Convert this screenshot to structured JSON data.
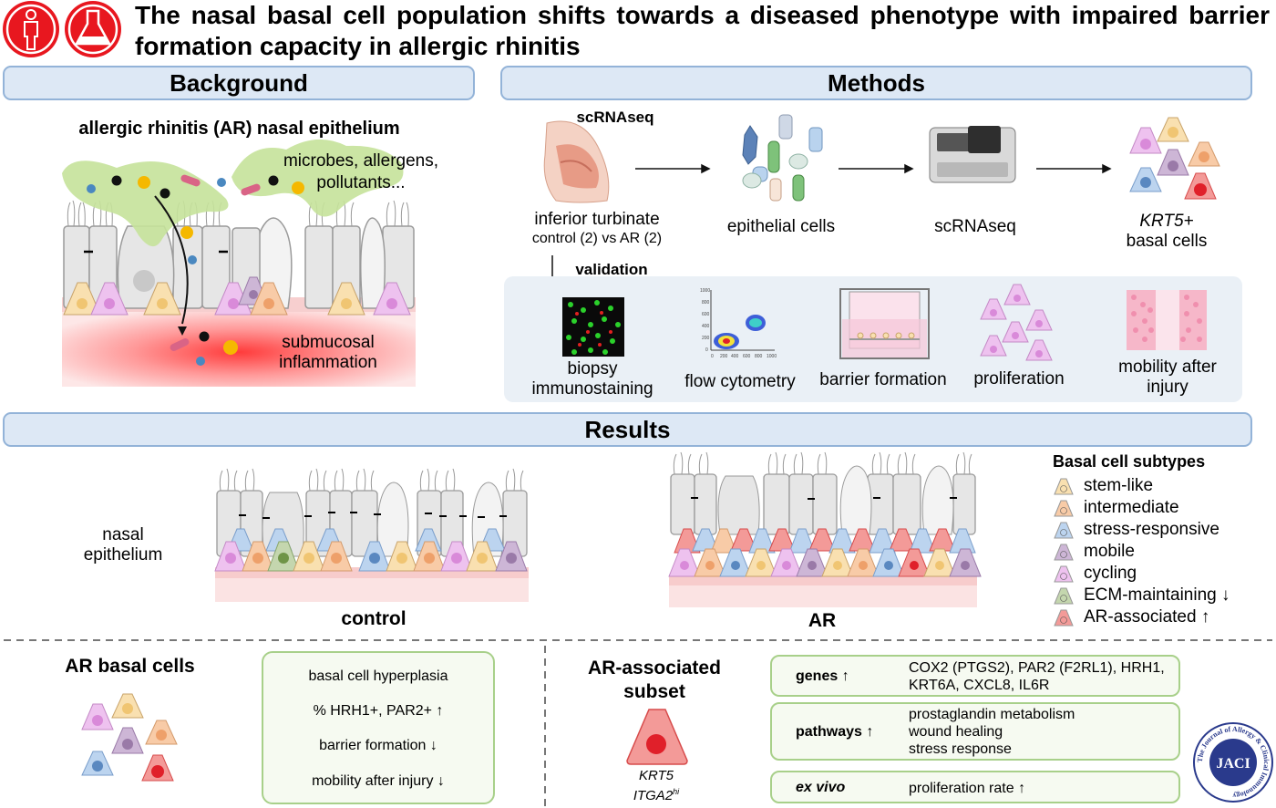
{
  "title": "The nasal basal cell population shifts towards a diseased phenotype with impaired barrier formation capacity in allergic rhinitis",
  "icons": [
    "person-icon",
    "flask-icon"
  ],
  "sections": {
    "background": "Background",
    "methods": "Methods",
    "results": "Results"
  },
  "background": {
    "heading": "allergic rhinitis (AR) nasal epithelium",
    "microbes": "microbes, allergens, pollutants...",
    "submucosal": "submucosal inflammation"
  },
  "methods": {
    "scrnaseq_head": "scRNAseq",
    "turbinate": "inferior turbinate",
    "turbinate_sub": "control (2) vs AR (2)",
    "epithelial": "epithelial cells",
    "scrnaseq": "scRNAseq",
    "krt5": "KRT5+",
    "basal_cells": "basal cells",
    "validation": "validation",
    "biopsy": "biopsy immunostaining",
    "flow": "flow cytometry",
    "barrier": "barrier formation",
    "proliferation": "proliferation",
    "mobility": "mobility after injury",
    "flow_axis_y": [
      "1000",
      "800",
      "600",
      "400",
      "200",
      "0"
    ],
    "flow_axis_x": [
      "0",
      "200",
      "400",
      "600",
      "800",
      "1000"
    ]
  },
  "results": {
    "nasal_epithelium": "nasal epithelium",
    "control": "control",
    "ar": "AR",
    "legend_title": "Basal cell subtypes",
    "legend": [
      {
        "label": "stem-like",
        "color": "#f9e0b0"
      },
      {
        "label": "intermediate",
        "color": "#f8cba7"
      },
      {
        "label": "stress-responsive",
        "color": "#bcd4ef"
      },
      {
        "label": "mobile",
        "color": "#cdb6d6"
      },
      {
        "label": "cycling",
        "color": "#eec2ef"
      },
      {
        "label": "ECM-maintaining ↓",
        "color": "#c4d6ae"
      },
      {
        "label": "AR-associated ↑",
        "color": "#f39a98"
      }
    ]
  },
  "bottom": {
    "ar_basal_cells": "AR basal cells",
    "findings": [
      "basal cell hyperplasia",
      "% HRH1+, PAR2+ ↑",
      "barrier formation ↓",
      "mobility after injury ↓"
    ],
    "subset_title": "AR-associated subset",
    "subset_gene1": "KRT5",
    "subset_gene2": "ITGA2",
    "subset_gene2_sup": "hi",
    "rows": [
      {
        "key": "genes ↑",
        "value_line1": "COX2 (PTGS2), PAR2 (F2RL1), HRH1,",
        "value_line2": "KRT6A, CXCL8, IL6R"
      },
      {
        "key": "pathways ↑",
        "value_line1": "prostaglandin metabolism",
        "value_line2": "wound healing",
        "value_line3": "stress response"
      },
      {
        "key": "ex vivo",
        "value_line1": "proliferation rate ↑"
      }
    ],
    "jaci_logo": "JACI",
    "jaci_ring": "The Journal of Allergy & Clinical Immunology"
  }
}
